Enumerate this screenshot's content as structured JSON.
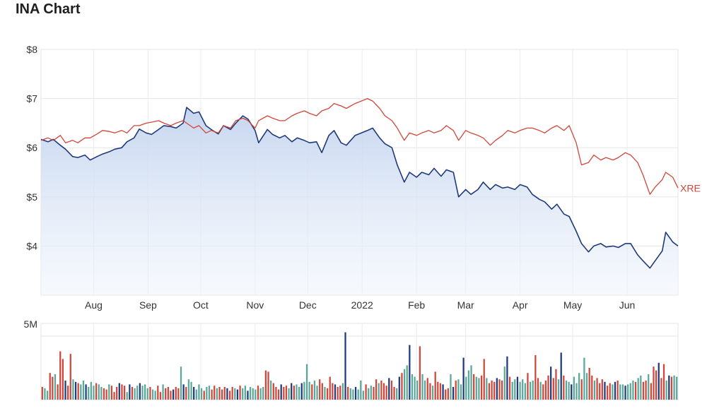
{
  "chart_data": {
    "title": "INA Chart",
    "type": "line",
    "price_axis": {
      "ticks": [
        "$8",
        "$7",
        "$6",
        "$5",
        "$4"
      ],
      "tick_values": [
        8,
        7,
        6,
        5,
        4
      ],
      "ylim": [
        3.0,
        8.0
      ],
      "grid": true
    },
    "x_axis": {
      "tick_labels": [
        "Aug",
        "Sep",
        "Oct",
        "Nov",
        "Dec",
        "2022",
        "Feb",
        "Mar",
        "Apr",
        "May",
        "Jun"
      ],
      "tick_dates": [
        "2021-08-01",
        "2021-09-01",
        "2021-10-01",
        "2021-11-01",
        "2021-12-01",
        "2022-01-01",
        "2022-02-01",
        "2022-03-01",
        "2022-04-01",
        "2022-05-01",
        "2022-06-01"
      ],
      "range": [
        "2021-07-02",
        "2022-06-30"
      ]
    },
    "series": [
      {
        "name": "",
        "color": "#1f3a7a",
        "fill": "area",
        "points": [
          [
            "2021-07-02",
            6.17
          ],
          [
            "2021-07-06",
            6.12
          ],
          [
            "2021-07-09",
            6.17
          ],
          [
            "2021-07-13",
            6.05
          ],
          [
            "2021-07-16",
            5.97
          ],
          [
            "2021-07-20",
            5.82
          ],
          [
            "2021-07-23",
            5.8
          ],
          [
            "2021-07-27",
            5.85
          ],
          [
            "2021-07-30",
            5.75
          ],
          [
            "2021-08-03",
            5.82
          ],
          [
            "2021-08-06",
            5.87
          ],
          [
            "2021-08-10",
            5.92
          ],
          [
            "2021-08-13",
            5.97
          ],
          [
            "2021-08-17",
            6.0
          ],
          [
            "2021-08-20",
            6.12
          ],
          [
            "2021-08-24",
            6.2
          ],
          [
            "2021-08-27",
            6.38
          ],
          [
            "2021-08-31",
            6.3
          ],
          [
            "2021-09-03",
            6.27
          ],
          [
            "2021-09-07",
            6.37
          ],
          [
            "2021-09-10",
            6.45
          ],
          [
            "2021-09-14",
            6.43
          ],
          [
            "2021-09-17",
            6.4
          ],
          [
            "2021-09-21",
            6.5
          ],
          [
            "2021-09-23",
            6.82
          ],
          [
            "2021-09-27",
            6.7
          ],
          [
            "2021-09-30",
            6.73
          ],
          [
            "2021-10-04",
            6.45
          ],
          [
            "2021-10-07",
            6.37
          ],
          [
            "2021-10-11",
            6.28
          ],
          [
            "2021-10-14",
            6.45
          ],
          [
            "2021-10-18",
            6.37
          ],
          [
            "2021-10-21",
            6.5
          ],
          [
            "2021-10-25",
            6.65
          ],
          [
            "2021-10-28",
            6.58
          ],
          [
            "2021-11-01",
            6.35
          ],
          [
            "2021-11-03",
            6.1
          ],
          [
            "2021-11-08",
            6.37
          ],
          [
            "2021-11-11",
            6.27
          ],
          [
            "2021-11-15",
            6.2
          ],
          [
            "2021-11-18",
            6.25
          ],
          [
            "2021-11-22",
            6.12
          ],
          [
            "2021-11-25",
            6.2
          ],
          [
            "2021-11-29",
            6.15
          ],
          [
            "2021-12-02",
            6.1
          ],
          [
            "2021-12-06",
            6.12
          ],
          [
            "2021-12-09",
            5.9
          ],
          [
            "2021-12-13",
            6.25
          ],
          [
            "2021-12-16",
            6.35
          ],
          [
            "2021-12-20",
            6.1
          ],
          [
            "2021-12-23",
            6.05
          ],
          [
            "2021-12-28",
            6.25
          ],
          [
            "2022-01-04",
            6.35
          ],
          [
            "2022-01-07",
            6.4
          ],
          [
            "2022-01-11",
            6.2
          ],
          [
            "2022-01-14",
            6.08
          ],
          [
            "2022-01-18",
            6.0
          ],
          [
            "2022-01-21",
            5.65
          ],
          [
            "2022-01-25",
            5.3
          ],
          [
            "2022-01-28",
            5.5
          ],
          [
            "2022-02-01",
            5.4
          ],
          [
            "2022-02-04",
            5.5
          ],
          [
            "2022-02-08",
            5.45
          ],
          [
            "2022-02-11",
            5.58
          ],
          [
            "2022-02-15",
            5.42
          ],
          [
            "2022-02-18",
            5.55
          ],
          [
            "2022-02-22",
            5.5
          ],
          [
            "2022-02-25",
            5.0
          ],
          [
            "2022-03-01",
            5.15
          ],
          [
            "2022-03-04",
            5.05
          ],
          [
            "2022-03-08",
            5.15
          ],
          [
            "2022-03-11",
            5.3
          ],
          [
            "2022-03-15",
            5.15
          ],
          [
            "2022-03-18",
            5.25
          ],
          [
            "2022-03-22",
            5.18
          ],
          [
            "2022-03-25",
            5.2
          ],
          [
            "2022-03-29",
            5.15
          ],
          [
            "2022-04-01",
            5.25
          ],
          [
            "2022-04-05",
            5.2
          ],
          [
            "2022-04-08",
            5.05
          ],
          [
            "2022-04-12",
            4.95
          ],
          [
            "2022-04-15",
            4.9
          ],
          [
            "2022-04-19",
            4.75
          ],
          [
            "2022-04-22",
            4.85
          ],
          [
            "2022-04-26",
            4.65
          ],
          [
            "2022-04-29",
            4.6
          ],
          [
            "2022-05-03",
            4.3
          ],
          [
            "2022-05-06",
            4.05
          ],
          [
            "2022-05-10",
            3.88
          ],
          [
            "2022-05-13",
            4.0
          ],
          [
            "2022-05-17",
            4.05
          ],
          [
            "2022-05-20",
            3.98
          ],
          [
            "2022-05-24",
            4.0
          ],
          [
            "2022-05-27",
            3.97
          ],
          [
            "2022-05-31",
            4.05
          ],
          [
            "2022-06-03",
            4.05
          ],
          [
            "2022-06-07",
            3.82
          ],
          [
            "2022-06-10",
            3.7
          ],
          [
            "2022-06-14",
            3.55
          ],
          [
            "2022-06-17",
            3.7
          ],
          [
            "2022-06-21",
            3.9
          ],
          [
            "2022-06-23",
            4.28
          ],
          [
            "2022-06-27",
            4.08
          ],
          [
            "2022-06-30",
            4.0
          ]
        ]
      },
      {
        "name": "XRE",
        "color": "#d0463b",
        "fill": "none",
        "points": [
          [
            "2021-07-02",
            6.15
          ],
          [
            "2021-07-06",
            6.2
          ],
          [
            "2021-07-09",
            6.15
          ],
          [
            "2021-07-13",
            6.25
          ],
          [
            "2021-07-16",
            6.1
          ],
          [
            "2021-07-20",
            6.15
          ],
          [
            "2021-07-23",
            6.1
          ],
          [
            "2021-07-27",
            6.2
          ],
          [
            "2021-07-30",
            6.2
          ],
          [
            "2021-08-03",
            6.28
          ],
          [
            "2021-08-06",
            6.35
          ],
          [
            "2021-08-10",
            6.33
          ],
          [
            "2021-08-13",
            6.3
          ],
          [
            "2021-08-17",
            6.35
          ],
          [
            "2021-08-20",
            6.3
          ],
          [
            "2021-08-24",
            6.45
          ],
          [
            "2021-08-27",
            6.45
          ],
          [
            "2021-08-31",
            6.5
          ],
          [
            "2021-09-03",
            6.52
          ],
          [
            "2021-09-07",
            6.55
          ],
          [
            "2021-09-10",
            6.5
          ],
          [
            "2021-09-14",
            6.45
          ],
          [
            "2021-09-17",
            6.5
          ],
          [
            "2021-09-21",
            6.55
          ],
          [
            "2021-09-23",
            6.5
          ],
          [
            "2021-09-27",
            6.4
          ],
          [
            "2021-09-30",
            6.45
          ],
          [
            "2021-10-04",
            6.3
          ],
          [
            "2021-10-07",
            6.35
          ],
          [
            "2021-10-11",
            6.3
          ],
          [
            "2021-10-14",
            6.45
          ],
          [
            "2021-10-18",
            6.4
          ],
          [
            "2021-10-21",
            6.55
          ],
          [
            "2021-10-25",
            6.6
          ],
          [
            "2021-10-28",
            6.55
          ],
          [
            "2021-11-01",
            6.4
          ],
          [
            "2021-11-03",
            6.55
          ],
          [
            "2021-11-08",
            6.65
          ],
          [
            "2021-11-11",
            6.6
          ],
          [
            "2021-11-15",
            6.55
          ],
          [
            "2021-11-18",
            6.55
          ],
          [
            "2021-11-22",
            6.65
          ],
          [
            "2021-11-25",
            6.7
          ],
          [
            "2021-11-29",
            6.75
          ],
          [
            "2021-12-02",
            6.7
          ],
          [
            "2021-12-06",
            6.65
          ],
          [
            "2021-12-09",
            6.75
          ],
          [
            "2021-12-13",
            6.8
          ],
          [
            "2021-12-16",
            6.9
          ],
          [
            "2021-12-20",
            6.85
          ],
          [
            "2021-12-23",
            6.8
          ],
          [
            "2021-12-28",
            6.9
          ],
          [
            "2022-01-04",
            7.0
          ],
          [
            "2022-01-07",
            6.95
          ],
          [
            "2022-01-11",
            6.8
          ],
          [
            "2022-01-14",
            6.65
          ],
          [
            "2022-01-18",
            6.55
          ],
          [
            "2022-01-21",
            6.4
          ],
          [
            "2022-01-25",
            6.15
          ],
          [
            "2022-01-28",
            6.3
          ],
          [
            "2022-02-01",
            6.25
          ],
          [
            "2022-02-04",
            6.3
          ],
          [
            "2022-02-08",
            6.35
          ],
          [
            "2022-02-11",
            6.3
          ],
          [
            "2022-02-15",
            6.35
          ],
          [
            "2022-02-18",
            6.45
          ],
          [
            "2022-02-22",
            6.35
          ],
          [
            "2022-02-25",
            6.15
          ],
          [
            "2022-03-01",
            6.35
          ],
          [
            "2022-03-04",
            6.3
          ],
          [
            "2022-03-08",
            6.25
          ],
          [
            "2022-03-11",
            6.2
          ],
          [
            "2022-03-15",
            6.05
          ],
          [
            "2022-03-18",
            6.15
          ],
          [
            "2022-03-22",
            6.25
          ],
          [
            "2022-03-25",
            6.35
          ],
          [
            "2022-03-29",
            6.3
          ],
          [
            "2022-04-01",
            6.35
          ],
          [
            "2022-04-05",
            6.4
          ],
          [
            "2022-04-08",
            6.4
          ],
          [
            "2022-04-12",
            6.35
          ],
          [
            "2022-04-15",
            6.3
          ],
          [
            "2022-04-19",
            6.4
          ],
          [
            "2022-04-22",
            6.45
          ],
          [
            "2022-04-26",
            6.35
          ],
          [
            "2022-04-29",
            6.45
          ],
          [
            "2022-05-03",
            6.1
          ],
          [
            "2022-05-06",
            5.65
          ],
          [
            "2022-05-10",
            5.7
          ],
          [
            "2022-05-13",
            5.85
          ],
          [
            "2022-05-17",
            5.75
          ],
          [
            "2022-05-20",
            5.8
          ],
          [
            "2022-05-24",
            5.75
          ],
          [
            "2022-05-27",
            5.8
          ],
          [
            "2022-05-31",
            5.9
          ],
          [
            "2022-06-03",
            5.85
          ],
          [
            "2022-06-07",
            5.7
          ],
          [
            "2022-06-10",
            5.45
          ],
          [
            "2022-06-14",
            5.05
          ],
          [
            "2022-06-17",
            5.2
          ],
          [
            "2022-06-21",
            5.35
          ],
          [
            "2022-06-23",
            5.5
          ],
          [
            "2022-06-27",
            5.4
          ],
          [
            "2022-06-30",
            5.18
          ]
        ]
      }
    ],
    "volume": {
      "ticks": [
        "5M"
      ],
      "tick_values": [
        5000000
      ],
      "ylim": [
        0,
        6000000
      ],
      "up_color": "#5aa89a",
      "down_color": "#d0463b",
      "neutral_color": "#1f3a7a",
      "values": [
        1000000,
        900000,
        700000,
        2100000,
        1800000,
        2000000,
        1200000,
        3800000,
        3200000,
        1500000,
        1100000,
        3600000,
        1600000,
        1400000,
        1300000,
        1200000,
        1500000,
        1200000,
        1000000,
        1400000,
        1100000,
        1300000,
        1200000,
        1000000,
        900000,
        800000,
        1200000,
        1100000,
        600000,
        1000000,
        1300000,
        1200000,
        1100000,
        600000,
        1200000,
        1000000,
        900000,
        1100000,
        1300000,
        1100000,
        1200000,
        900000,
        1000000,
        800000,
        700000,
        1100000,
        600000,
        1200000,
        900000,
        1000000,
        700000,
        800000,
        1000000,
        900000,
        2600000,
        1200000,
        1000000,
        1600000,
        1400000,
        1000000,
        800000,
        1200000,
        900000,
        700000,
        1000000,
        1100000,
        800000,
        1100000,
        900000,
        1000000,
        800000,
        1000000,
        900000,
        700000,
        1000000,
        900000,
        800000,
        1100000,
        900000,
        1100000,
        700000,
        1000000,
        900000,
        800000,
        1100000,
        900000,
        1000000,
        2300000,
        2200000,
        1500000,
        1300000,
        1000000,
        800000,
        1200000,
        1000000,
        1100000,
        900000,
        1300000,
        1100000,
        1200000,
        1000000,
        1300000,
        1400000,
        2800000,
        1400000,
        1200000,
        1500000,
        1100000,
        1600000,
        1300000,
        1000000,
        900000,
        1800000,
        1300000,
        1200000,
        1000000,
        1100000,
        1300000,
        5300000,
        1000000,
        900000,
        800000,
        1000000,
        800000,
        1500000,
        700000,
        1200000,
        900000,
        1100000,
        1000000,
        1600000,
        1300000,
        1500000,
        1300000,
        1100000,
        1700000,
        1500000,
        1000000,
        900000,
        1800000,
        2100000,
        2400000,
        2700000,
        4300000,
        2000000,
        1800000,
        1500000,
        4200000,
        2000000,
        1500000,
        1700000,
        1300000,
        1100000,
        2200000,
        1400000,
        1300000,
        1200000,
        800000,
        900000,
        2000000,
        1000000,
        1500000,
        1600000,
        1200000,
        3300000,
        1800000,
        2300000,
        2700000,
        2000000,
        1800000,
        1700000,
        1900000,
        3200000,
        1700000,
        1300000,
        1500000,
        1400000,
        1700000,
        1600000,
        1500000,
        2600000,
        3400000,
        1800000,
        1400000,
        1600000,
        1800000,
        1400000,
        1600000,
        1300000,
        2100000,
        1400000,
        1500000,
        3500000,
        1700000,
        1400000,
        1200000,
        1500000,
        1900000,
        2600000,
        1700000,
        2400000,
        1600000,
        3700000,
        1900000,
        1500000,
        1400000,
        1200000,
        1800000,
        1300000,
        2100000,
        1600000,
        3300000,
        2100000,
        2500000,
        1900000,
        1500000,
        1700000,
        1300000,
        1600000,
        1400000,
        1100000,
        1300000,
        1200000,
        1400000,
        1500000,
        1200000,
        1200000,
        1100000,
        1200000,
        1300000,
        1500000,
        1400000,
        1700000,
        1900000,
        1400000,
        1500000,
        2000000,
        1300000,
        2600000,
        2300000,
        2900000,
        1700000,
        2800000,
        1500000,
        1900000,
        1800000,
        1900000,
        1800000
      ]
    }
  }
}
